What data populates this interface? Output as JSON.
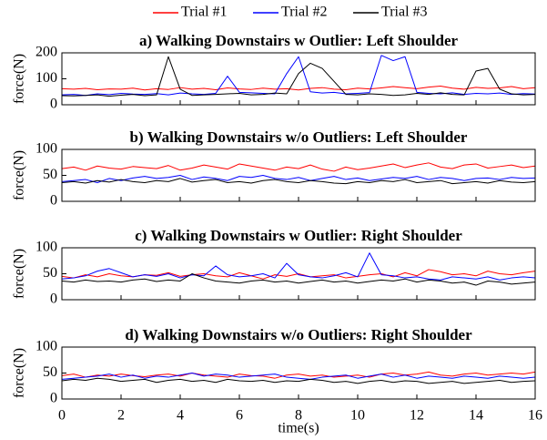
{
  "chart_data": [
    {
      "type": "line",
      "title": "a) Walking Downstairs w Outlier: Left Shoulder",
      "ylabel": "force(N)",
      "x": [
        0,
        0.4,
        0.8,
        1.2,
        1.6,
        2,
        2.4,
        2.8,
        3.2,
        3.6,
        4,
        4.4,
        4.8,
        5.2,
        5.6,
        6,
        6.4,
        6.8,
        7.2,
        7.6,
        8,
        8.4,
        8.8,
        9.2,
        9.6,
        10,
        10.4,
        10.8,
        11.2,
        11.6,
        12,
        12.4,
        12.8,
        13.2,
        13.6,
        14,
        14.4,
        14.8,
        15.2,
        15.6,
        16
      ],
      "xlim": [
        0,
        16
      ],
      "xticks": [
        0,
        2,
        4,
        6,
        8,
        10,
        12,
        14,
        16
      ],
      "ylim": [
        0,
        200
      ],
      "yticks": [
        0,
        100,
        200
      ],
      "series": [
        {
          "name": "Trial #1",
          "color": "#ff0000",
          "values": [
            62,
            60,
            63,
            58,
            61,
            60,
            64,
            57,
            62,
            59,
            66,
            60,
            63,
            58,
            65,
            61,
            59,
            64,
            60,
            62,
            57,
            63,
            66,
            60,
            58,
            64,
            61,
            65,
            70,
            66,
            62,
            68,
            72,
            64,
            60,
            67,
            63,
            65,
            70,
            62,
            66
          ]
        },
        {
          "name": "Trial #2",
          "color": "#0000ff",
          "values": [
            38,
            40,
            36,
            42,
            39,
            44,
            41,
            40,
            43,
            38,
            45,
            42,
            40,
            44,
            110,
            48,
            46,
            44,
            42,
            120,
            185,
            50,
            45,
            48,
            42,
            44,
            47,
            190,
            170,
            185,
            48,
            44,
            42,
            46,
            40,
            44,
            42,
            45,
            40,
            43,
            41
          ]
        },
        {
          "name": "Trial #3",
          "color": "#000000",
          "values": [
            35,
            34,
            36,
            38,
            33,
            37,
            40,
            35,
            38,
            185,
            60,
            36,
            38,
            40,
            42,
            44,
            38,
            40,
            45,
            42,
            120,
            160,
            140,
            90,
            40,
            38,
            42,
            40,
            36,
            38,
            44,
            40,
            46,
            40,
            38,
            130,
            140,
            60,
            42,
            38,
            40
          ]
        }
      ]
    },
    {
      "type": "line",
      "title": "b) Walking Downstairs w/o Outliers: Left Shoulder",
      "ylabel": "force(N)",
      "x": [
        0,
        0.4,
        0.8,
        1.2,
        1.6,
        2,
        2.4,
        2.8,
        3.2,
        3.6,
        4,
        4.4,
        4.8,
        5.2,
        5.6,
        6,
        6.4,
        6.8,
        7.2,
        7.6,
        8,
        8.4,
        8.8,
        9.2,
        9.6,
        10,
        10.4,
        10.8,
        11.2,
        11.6,
        12,
        12.4,
        12.8,
        13.2,
        13.6,
        14,
        14.4,
        14.8,
        15.2,
        15.6,
        16
      ],
      "xlim": [
        0,
        16
      ],
      "xticks": [
        0,
        2,
        4,
        6,
        8,
        10,
        12,
        14,
        16
      ],
      "ylim": [
        0,
        100
      ],
      "yticks": [
        0,
        50,
        100
      ],
      "series": [
        {
          "name": "Trial #1",
          "color": "#ff0000",
          "values": [
            63,
            66,
            60,
            68,
            64,
            62,
            67,
            65,
            63,
            69,
            60,
            64,
            70,
            66,
            62,
            72,
            68,
            64,
            60,
            66,
            63,
            70,
            62,
            58,
            66,
            61,
            64,
            68,
            72,
            65,
            70,
            74,
            66,
            63,
            70,
            72,
            64,
            67,
            70,
            65,
            68
          ]
        },
        {
          "name": "Trial #2",
          "color": "#0000ff",
          "values": [
            38,
            40,
            42,
            36,
            44,
            40,
            45,
            48,
            44,
            46,
            50,
            42,
            47,
            44,
            40,
            48,
            46,
            50,
            44,
            42,
            46,
            40,
            44,
            48,
            42,
            45,
            40,
            43,
            46,
            44,
            48,
            42,
            46,
            44,
            40,
            44,
            45,
            42,
            46,
            44,
            45
          ]
        },
        {
          "name": "Trial #3",
          "color": "#000000",
          "values": [
            36,
            38,
            35,
            40,
            37,
            42,
            38,
            36,
            40,
            38,
            44,
            37,
            40,
            42,
            36,
            38,
            35,
            40,
            42,
            38,
            36,
            40,
            38,
            35,
            34,
            38,
            36,
            40,
            38,
            42,
            36,
            38,
            40,
            34,
            36,
            38,
            35,
            40,
            37,
            36,
            38
          ]
        }
      ]
    },
    {
      "type": "line",
      "title": "c) Walking Downstairs w Outlier: Right Shoulder",
      "ylabel": "force(N)",
      "x": [
        0,
        0.4,
        0.8,
        1.2,
        1.6,
        2,
        2.4,
        2.8,
        3.2,
        3.6,
        4,
        4.4,
        4.8,
        5.2,
        5.6,
        6,
        6.4,
        6.8,
        7.2,
        7.6,
        8,
        8.4,
        8.8,
        9.2,
        9.6,
        10,
        10.4,
        10.8,
        11.2,
        11.6,
        12,
        12.4,
        12.8,
        13.2,
        13.6,
        14,
        14.4,
        14.8,
        15.2,
        15.6,
        16
      ],
      "xlim": [
        0,
        16
      ],
      "xticks": [
        0,
        2,
        4,
        6,
        8,
        10,
        12,
        14,
        16
      ],
      "ylim": [
        0,
        100
      ],
      "yticks": [
        0,
        50,
        100
      ],
      "series": [
        {
          "name": "Trial #1",
          "color": "#ff0000",
          "values": [
            45,
            42,
            48,
            44,
            50,
            46,
            44,
            48,
            47,
            52,
            45,
            48,
            50,
            46,
            44,
            52,
            46,
            40,
            48,
            45,
            50,
            44,
            46,
            48,
            42,
            45,
            48,
            50,
            44,
            52,
            46,
            58,
            54,
            48,
            50,
            46,
            55,
            50,
            48,
            52,
            55
          ]
        },
        {
          "name": "Trial #2",
          "color": "#0000ff",
          "values": [
            40,
            42,
            46,
            55,
            60,
            52,
            44,
            48,
            45,
            50,
            42,
            48,
            46,
            65,
            48,
            44,
            46,
            50,
            42,
            70,
            48,
            44,
            42,
            46,
            52,
            44,
            90,
            48,
            46,
            42,
            44,
            40,
            38,
            44,
            42,
            40,
            44,
            38,
            42,
            44,
            42
          ]
        },
        {
          "name": "Trial #3",
          "color": "#000000",
          "values": [
            36,
            34,
            38,
            35,
            36,
            34,
            38,
            40,
            35,
            38,
            36,
            50,
            42,
            36,
            34,
            32,
            36,
            38,
            34,
            36,
            32,
            35,
            38,
            34,
            36,
            32,
            35,
            38,
            36,
            40,
            34,
            38,
            36,
            32,
            34,
            28,
            36,
            34,
            30,
            32,
            34
          ]
        }
      ]
    },
    {
      "type": "line",
      "title": "d) Walking Downstairs w/o Outliers: Right Shoulder",
      "ylabel": "force(N)",
      "xlabel": "time(s)",
      "x": [
        0,
        0.4,
        0.8,
        1.2,
        1.6,
        2,
        2.4,
        2.8,
        3.2,
        3.6,
        4,
        4.4,
        4.8,
        5.2,
        5.6,
        6,
        6.4,
        6.8,
        7.2,
        7.6,
        8,
        8.4,
        8.8,
        9.2,
        9.6,
        10,
        10.4,
        10.8,
        11.2,
        11.6,
        12,
        12.4,
        12.8,
        13.2,
        13.6,
        14,
        14.4,
        14.8,
        15.2,
        15.6,
        16
      ],
      "xlim": [
        0,
        16
      ],
      "xticks": [
        0,
        2,
        4,
        6,
        8,
        10,
        12,
        14,
        16
      ],
      "ylim": [
        0,
        100
      ],
      "yticks": [
        0,
        50,
        100
      ],
      "series": [
        {
          "name": "Trial #1",
          "color": "#ff0000",
          "values": [
            45,
            48,
            42,
            46,
            44,
            48,
            45,
            43,
            46,
            48,
            44,
            50,
            46,
            44,
            42,
            48,
            45,
            44,
            40,
            46,
            48,
            44,
            46,
            42,
            44,
            46,
            42,
            48,
            50,
            46,
            48,
            52,
            46,
            44,
            48,
            50,
            46,
            48,
            50,
            48,
            52
          ]
        },
        {
          "name": "Trial #2",
          "color": "#0000ff",
          "values": [
            38,
            40,
            42,
            44,
            48,
            42,
            46,
            40,
            44,
            42,
            46,
            50,
            44,
            48,
            46,
            42,
            44,
            46,
            48,
            42,
            40,
            38,
            42,
            44,
            46,
            40,
            44,
            48,
            42,
            46,
            40,
            44,
            42,
            40,
            44,
            42,
            40,
            44,
            42,
            40,
            42
          ]
        },
        {
          "name": "Trial #3",
          "color": "#000000",
          "values": [
            35,
            38,
            36,
            40,
            38,
            34,
            36,
            38,
            32,
            36,
            38,
            34,
            36,
            32,
            38,
            35,
            34,
            36,
            32,
            35,
            34,
            38,
            36,
            32,
            34,
            30,
            34,
            36,
            32,
            35,
            34,
            30,
            32,
            34,
            30,
            32,
            34,
            36,
            32,
            34,
            35
          ]
        }
      ]
    }
  ]
}
